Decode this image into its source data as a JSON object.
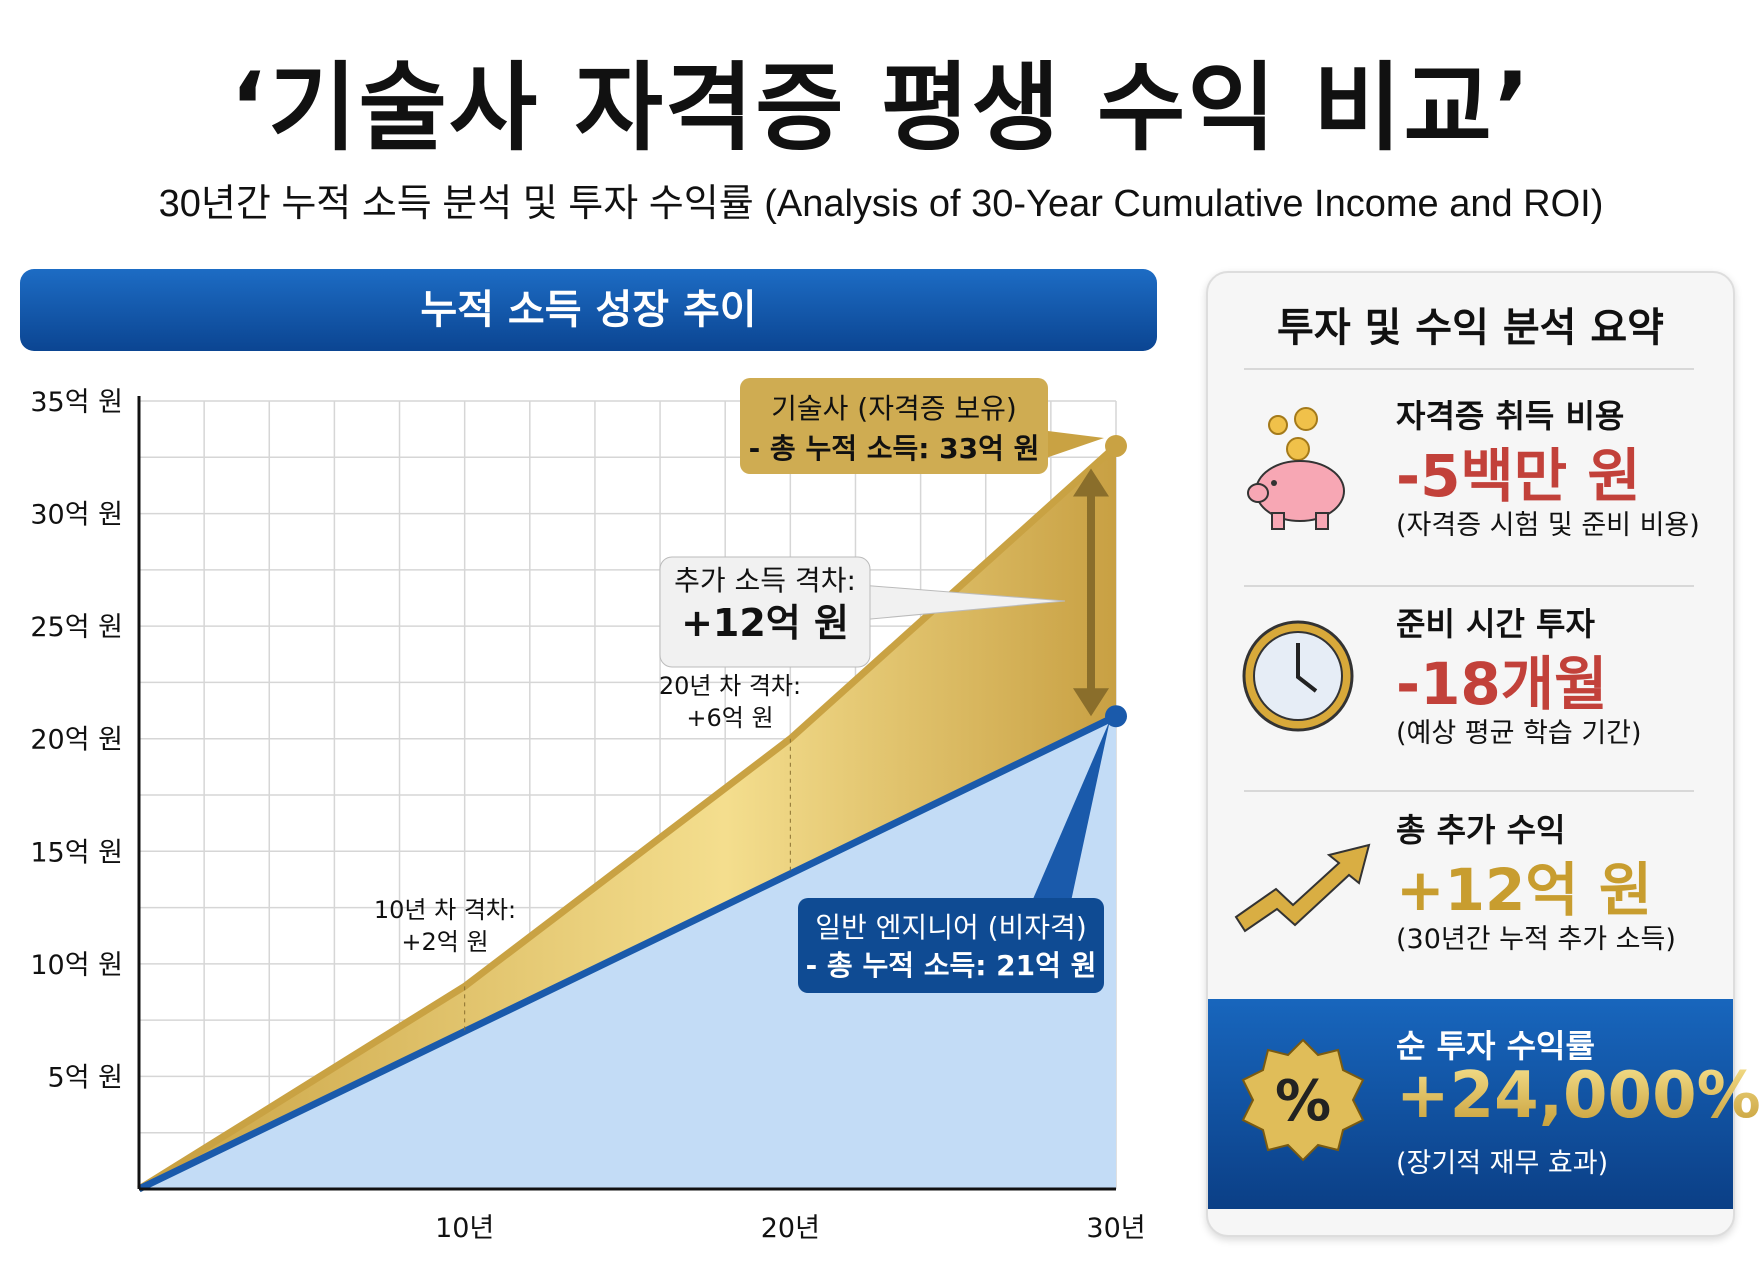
{
  "title": "‘기술사 자격증 평생 수익 비교’",
  "subtitle": "30년간 누적 소득 분석 및 투자 수익률 (Analysis of 30-Year Cumulative Income and ROI)",
  "chart_banner": "누적 소득 성장 추이",
  "chart_data": {
    "type": "area",
    "title": "누적 소득 성장 추이",
    "x": [
      0,
      10,
      20,
      30
    ],
    "xticks": [
      10,
      20,
      30
    ],
    "xtick_labels": [
      "10년",
      "20년",
      "30년"
    ],
    "xlim": [
      0,
      30
    ],
    "ylim": [
      0,
      35
    ],
    "yticks": [
      5,
      10,
      15,
      20,
      25,
      30,
      35
    ],
    "ytick_labels": [
      "5억 원",
      "10억 원",
      "15억 원",
      "20억 원",
      "25억 원",
      "30억 원",
      "35억 원"
    ],
    "grid": true,
    "series": [
      {
        "name": "기술사 (자격증 보유)",
        "values": [
          0,
          9,
          20,
          33
        ],
        "color": "#c9a243"
      },
      {
        "name": "일반 엔지니어 (비자격)",
        "values": [
          0,
          7,
          14,
          21
        ],
        "color": "#1a5aab"
      }
    ],
    "annotations": {
      "gold_callout": [
        "기술사 (자격증 보유)",
        "- 총 누적 소득: 33억 원"
      ],
      "blue_callout": [
        "일반 엔지니어 (비자격)",
        "- 총 누적 소득: 21억 원"
      ],
      "gap_callout": [
        "추가 소득 격차:",
        "+12억 원"
      ],
      "gap10": [
        "10년 차 격차:",
        "+2억 원"
      ],
      "gap20": [
        "20년 차 격차:",
        "+6억 원"
      ]
    }
  },
  "panel": {
    "title": "투자 및 수익 분석 요약",
    "items": [
      {
        "label": "자격증 취득 비용",
        "value": "-5백만 원",
        "note": "(자격증 시험 및 준비 비용)",
        "icon": "piggy-bank-icon"
      },
      {
        "label": "준비 시간 투자",
        "value": "-18개월",
        "note": "(예상 평균 학습 기간)",
        "icon": "clock-icon"
      },
      {
        "label": "총 추가 수익",
        "value": "+12억 원",
        "note": "(30년간 누적 추가 소득)",
        "icon": "trend-arrow-icon"
      },
      {
        "label": "순 투자 수익률",
        "value": "+24,000%",
        "note": "(장기적 재무 효과)",
        "icon": "percent-badge-icon"
      }
    ]
  },
  "colors": {
    "banner": "#1558a8",
    "gold": "#c9a243",
    "blue": "#1a5aab",
    "negative": "#c2413a"
  }
}
